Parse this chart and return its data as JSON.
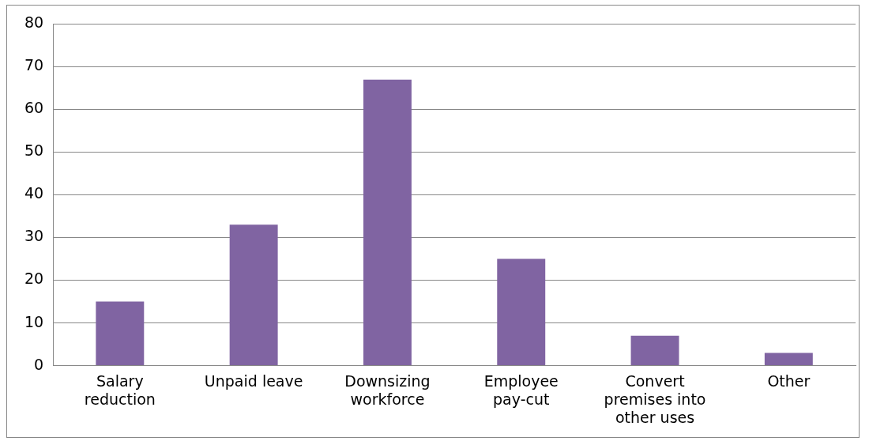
{
  "chart_data": {
    "type": "bar",
    "categories": [
      "Salary reduction",
      "Unpaid leave",
      "Downsizing workforce",
      "Employee pay-cut",
      "Convert premises into other uses",
      "Other"
    ],
    "values": [
      15,
      33,
      67,
      25,
      7,
      3
    ],
    "color": "#8064a2",
    "ylim": [
      0,
      80
    ],
    "yticks": [
      0,
      10,
      20,
      30,
      40,
      50,
      60,
      70,
      80
    ],
    "grid": "y",
    "legend": false
  }
}
